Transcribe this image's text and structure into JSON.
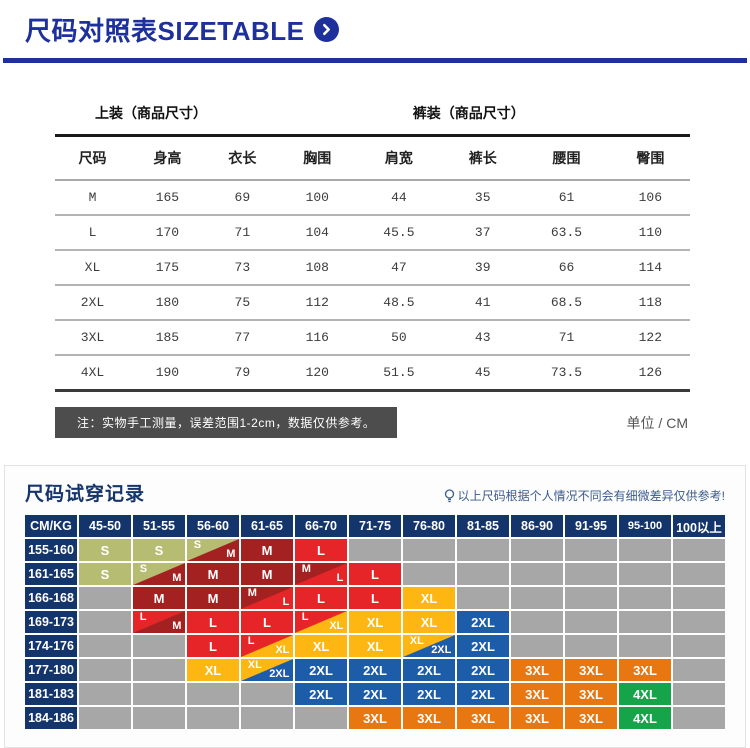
{
  "header": {
    "title": "尺码对照表SIZETABLE",
    "accent_color": "#1d309b",
    "icon": "chevron-right-circle"
  },
  "size_table": {
    "group_headers": [
      "上装（商品尺寸）",
      "裤装（商品尺寸）"
    ],
    "columns": [
      "尺码",
      "身高",
      "衣长",
      "胸围",
      "肩宽",
      "裤长",
      "腰围",
      "臀围"
    ],
    "rows": [
      [
        "M",
        "165",
        "69",
        "100",
        "44",
        "35",
        "61",
        "106"
      ],
      [
        "L",
        "170",
        "71",
        "104",
        "45.5",
        "37",
        "63.5",
        "110"
      ],
      [
        "XL",
        "175",
        "73",
        "108",
        "47",
        "39",
        "66",
        "114"
      ],
      [
        "2XL",
        "180",
        "75",
        "112",
        "48.5",
        "41",
        "68.5",
        "118"
      ],
      [
        "3XL",
        "185",
        "77",
        "116",
        "50",
        "43",
        "71",
        "122"
      ],
      [
        "4XL",
        "190",
        "79",
        "120",
        "51.5",
        "45",
        "73.5",
        "126"
      ]
    ],
    "note": "注：实物手工测量，误差范围1-2cm，数据仅供参考。",
    "unit": "单位 / CM"
  },
  "fit_chart": {
    "title": "尺码试穿记录",
    "tip": "以上尺码根据个人情况不同会有细微差异仅供参考!",
    "tip_icon": "bulb",
    "corner_label": "CM/KG",
    "weight_columns": [
      "45-50",
      "51-55",
      "56-60",
      "61-65",
      "66-70",
      "71-75",
      "76-80",
      "81-85",
      "86-90",
      "91-95",
      "95-100",
      "100以上"
    ],
    "height_rows": [
      "155-160",
      "161-165",
      "166-168",
      "169-173",
      "174-176",
      "177-180",
      "181-183",
      "184-186"
    ],
    "size_colors": {
      "S": "#b6bd72",
      "M": "#a32221",
      "L": "#e62529",
      "XL": "#fdb612",
      "2XL": "#1d5ca8",
      "3XL": "#e87611",
      "4XL": "#16a44a",
      "empty": "#a7a7a7",
      "label_bg": "#14356b"
    },
    "cells": [
      [
        "S",
        "S",
        "S/M",
        "M",
        "L",
        "",
        "",
        "",
        "",
        "",
        "",
        ""
      ],
      [
        "S",
        "S/M",
        "M",
        "M",
        "M/L",
        "L",
        "",
        "",
        "",
        "",
        "",
        ""
      ],
      [
        "",
        "M",
        "M",
        "M/L",
        "L",
        "L",
        "XL",
        "",
        "",
        "",
        "",
        ""
      ],
      [
        "",
        "L/M",
        "L",
        "L",
        "L/XL",
        "XL",
        "XL",
        "2XL",
        "",
        "",
        "",
        ""
      ],
      [
        "",
        "",
        "L",
        "L/XL",
        "XL",
        "XL",
        "XL/2XL",
        "2XL",
        "",
        "",
        "",
        ""
      ],
      [
        "",
        "",
        "XL",
        "XL/2XL",
        "2XL",
        "2XL",
        "2XL",
        "2XL",
        "3XL",
        "3XL",
        "3XL",
        ""
      ],
      [
        "",
        "",
        "",
        "",
        "2XL",
        "2XL",
        "2XL",
        "2XL",
        "3XL",
        "3XL",
        "4XL",
        ""
      ],
      [
        "",
        "",
        "",
        "",
        "",
        "3XL",
        "3XL",
        "3XL",
        "3XL",
        "3XL",
        "4XL",
        ""
      ]
    ]
  }
}
